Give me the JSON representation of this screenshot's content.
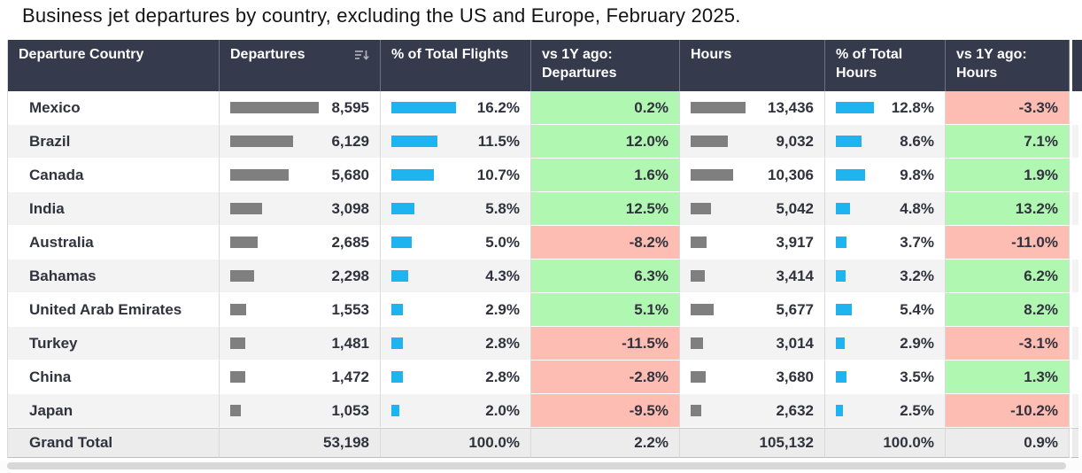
{
  "colors": {
    "header_bg": "#363a4d",
    "positive_bg": "#b0f7b1",
    "negative_bg": "#fdbdb2",
    "bar_primary_gray": "#7f7f7f",
    "bar_accent_blue": "#1db4f0"
  },
  "icons": {
    "departures_header": "sort-descending-icon"
  },
  "chart_data": {
    "type": "table",
    "title": "Business jet departures by country, excluding the US and Europe, February 2025.",
    "columns": [
      "Departure Country",
      "Departures",
      "% of Total Flights",
      "vs 1Y ago: Departures",
      "Hours",
      "% of Total Hours",
      "vs 1Y ago: Hours"
    ],
    "rows": [
      {
        "country": "Mexico",
        "departures": "8,595",
        "pct_flights": "16.2%",
        "vs_departures": "0.2%",
        "hours": "13,436",
        "pct_hours": "12.8%",
        "vs_hours": "-3.3%"
      },
      {
        "country": "Brazil",
        "departures": "6,129",
        "pct_flights": "11.5%",
        "vs_departures": "12.0%",
        "hours": "9,032",
        "pct_hours": "8.6%",
        "vs_hours": "7.1%"
      },
      {
        "country": "Canada",
        "departures": "5,680",
        "pct_flights": "10.7%",
        "vs_departures": "1.6%",
        "hours": "10,306",
        "pct_hours": "9.8%",
        "vs_hours": "1.9%"
      },
      {
        "country": "India",
        "departures": "3,098",
        "pct_flights": "5.8%",
        "vs_departures": "12.5%",
        "hours": "5,042",
        "pct_hours": "4.8%",
        "vs_hours": "13.2%"
      },
      {
        "country": "Australia",
        "departures": "2,685",
        "pct_flights": "5.0%",
        "vs_departures": "-8.2%",
        "hours": "3,917",
        "pct_hours": "3.7%",
        "vs_hours": "-11.0%"
      },
      {
        "country": "Bahamas",
        "departures": "2,298",
        "pct_flights": "4.3%",
        "vs_departures": "6.3%",
        "hours": "3,414",
        "pct_hours": "3.2%",
        "vs_hours": "6.2%"
      },
      {
        "country": "United Arab Emirates",
        "departures": "1,553",
        "pct_flights": "2.9%",
        "vs_departures": "5.1%",
        "hours": "5,677",
        "pct_hours": "5.4%",
        "vs_hours": "8.2%"
      },
      {
        "country": "Turkey",
        "departures": "1,481",
        "pct_flights": "2.8%",
        "vs_departures": "-11.5%",
        "hours": "3,014",
        "pct_hours": "2.9%",
        "vs_hours": "-3.1%"
      },
      {
        "country": "China",
        "departures": "1,472",
        "pct_flights": "2.8%",
        "vs_departures": "-2.8%",
        "hours": "3,680",
        "pct_hours": "3.5%",
        "vs_hours": "1.3%"
      },
      {
        "country": "Japan",
        "departures": "1,053",
        "pct_flights": "2.0%",
        "vs_departures": "-9.5%",
        "hours": "2,632",
        "pct_hours": "2.5%",
        "vs_hours": "-10.2%"
      }
    ],
    "grand_total": {
      "country": "Grand Total",
      "departures": "53,198",
      "pct_flights": "100.0%",
      "vs_departures": "2.2%",
      "hours": "105,132",
      "pct_hours": "100.0%",
      "vs_hours": "0.9%"
    }
  }
}
